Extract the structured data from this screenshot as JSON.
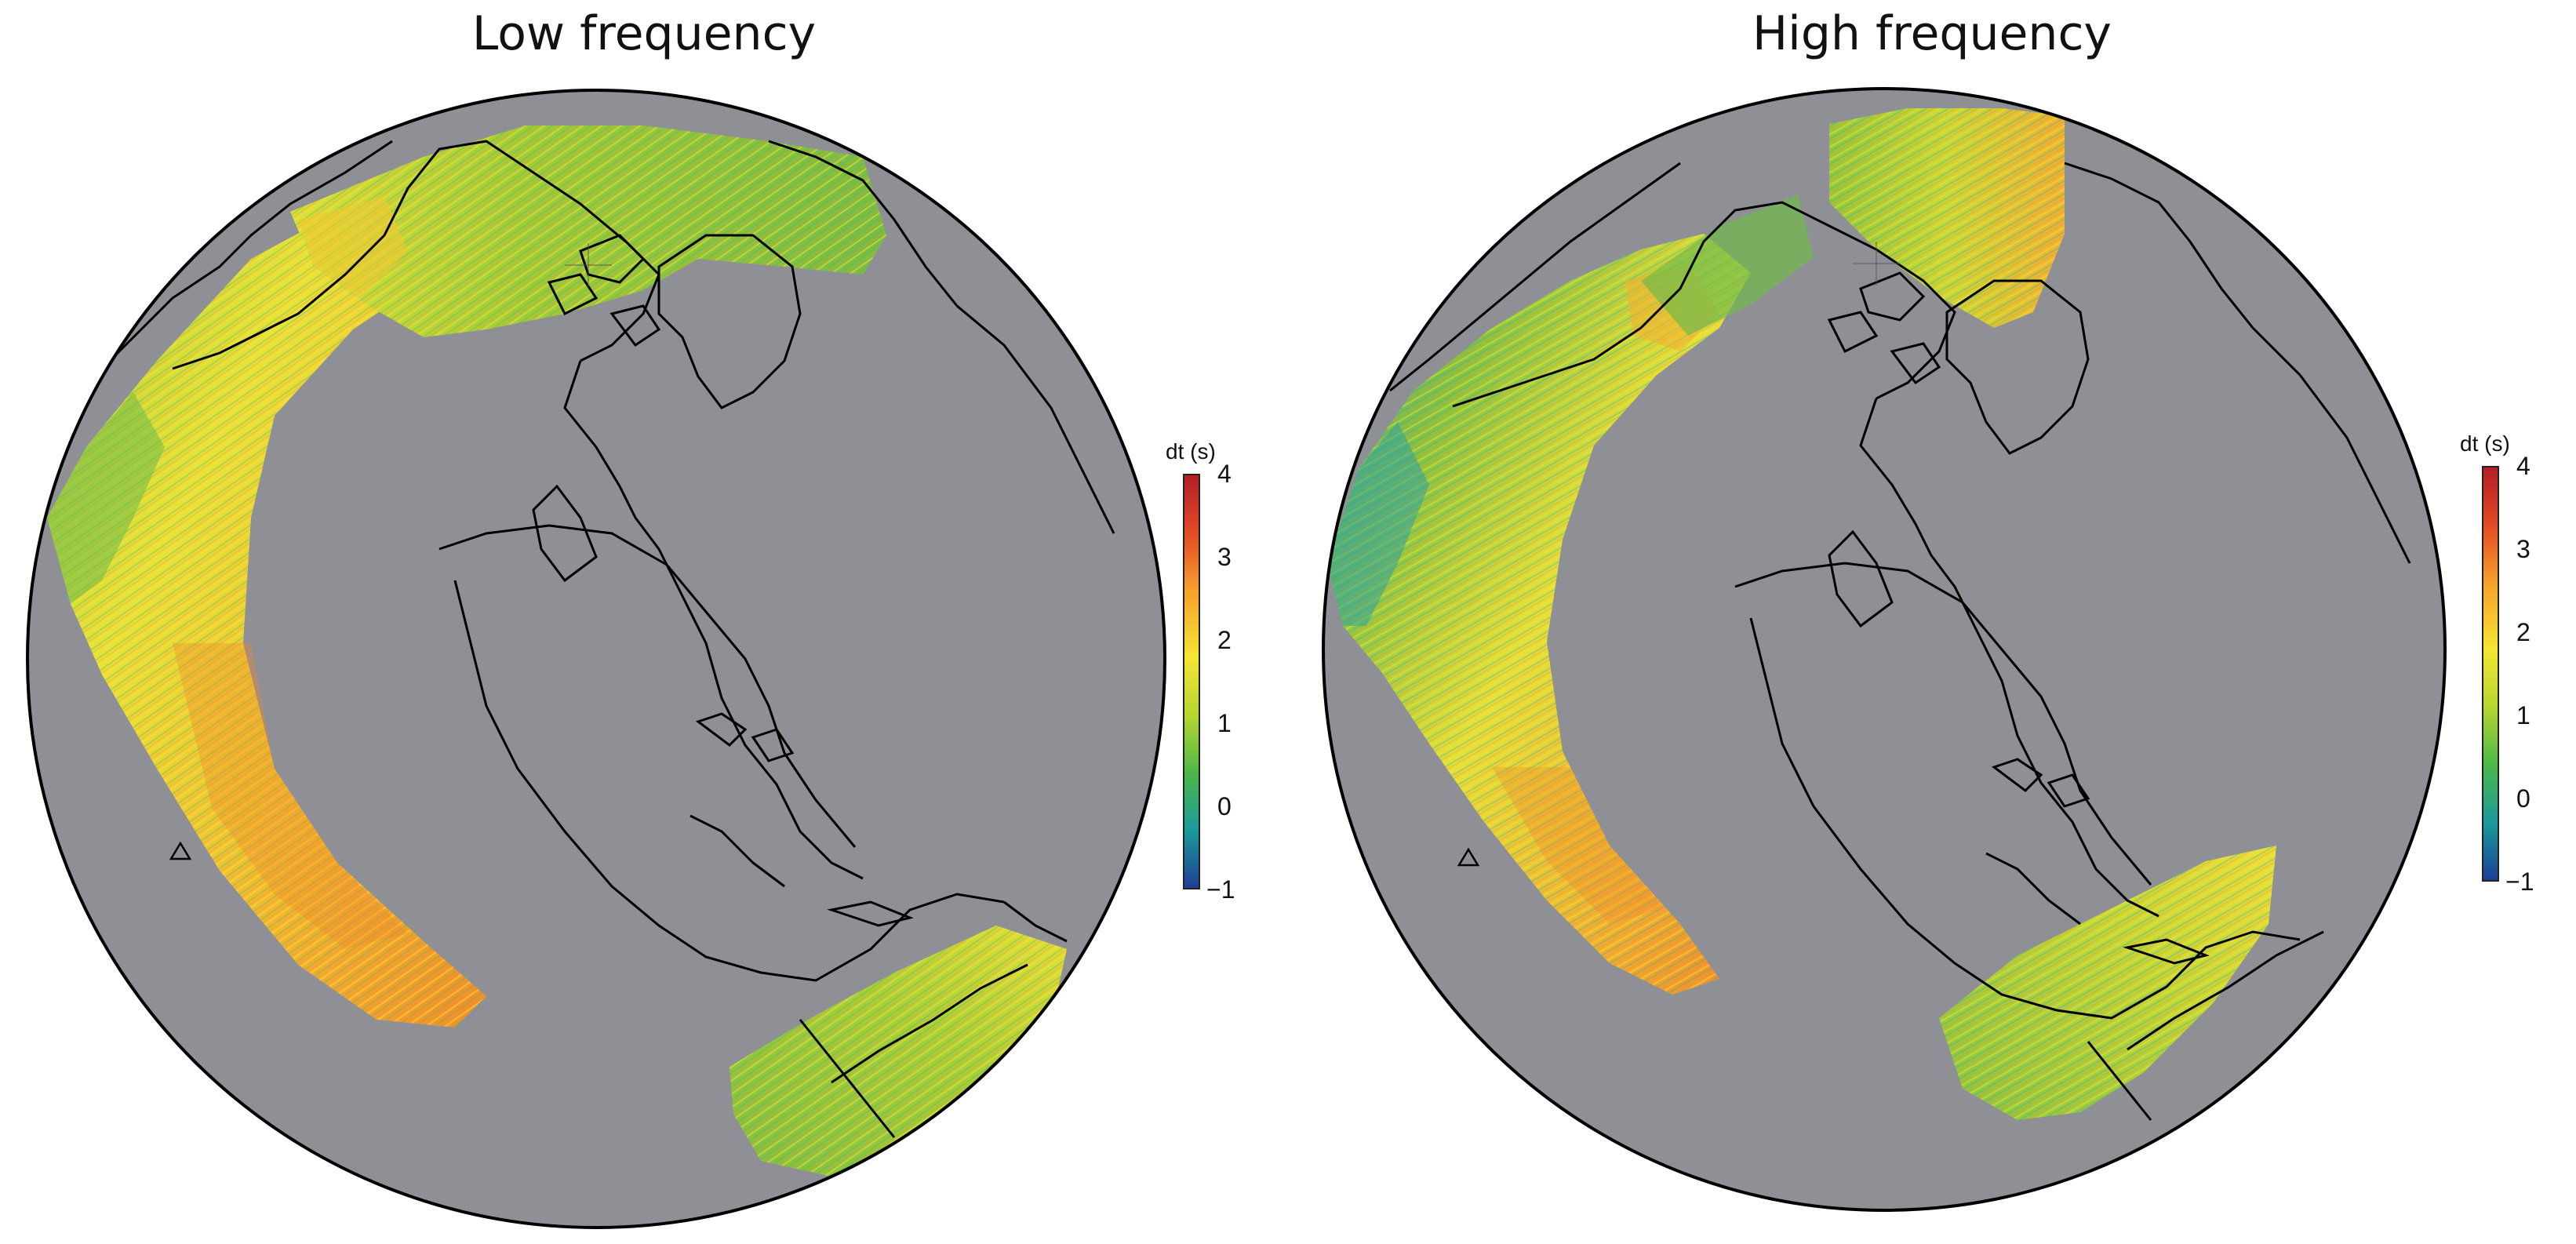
{
  "panels": [
    {
      "title": "Low frequency"
    },
    {
      "title": "High frequency"
    }
  ],
  "colorbar": {
    "label": "dt (s)",
    "min": -1,
    "max": 4,
    "ticks": [
      "4",
      "3",
      "2",
      "1",
      "0",
      "−1"
    ],
    "colors": [
      "#1d3f95",
      "#1b9a9c",
      "#4db848",
      "#b7d631",
      "#f5e532",
      "#f7a12c",
      "#e24a26",
      "#b41e25"
    ]
  },
  "colors": {
    "ocean": "#8f9096",
    "coastline": "#000000",
    "background": "#ffffff"
  },
  "station_marker": "triangle-marker"
}
